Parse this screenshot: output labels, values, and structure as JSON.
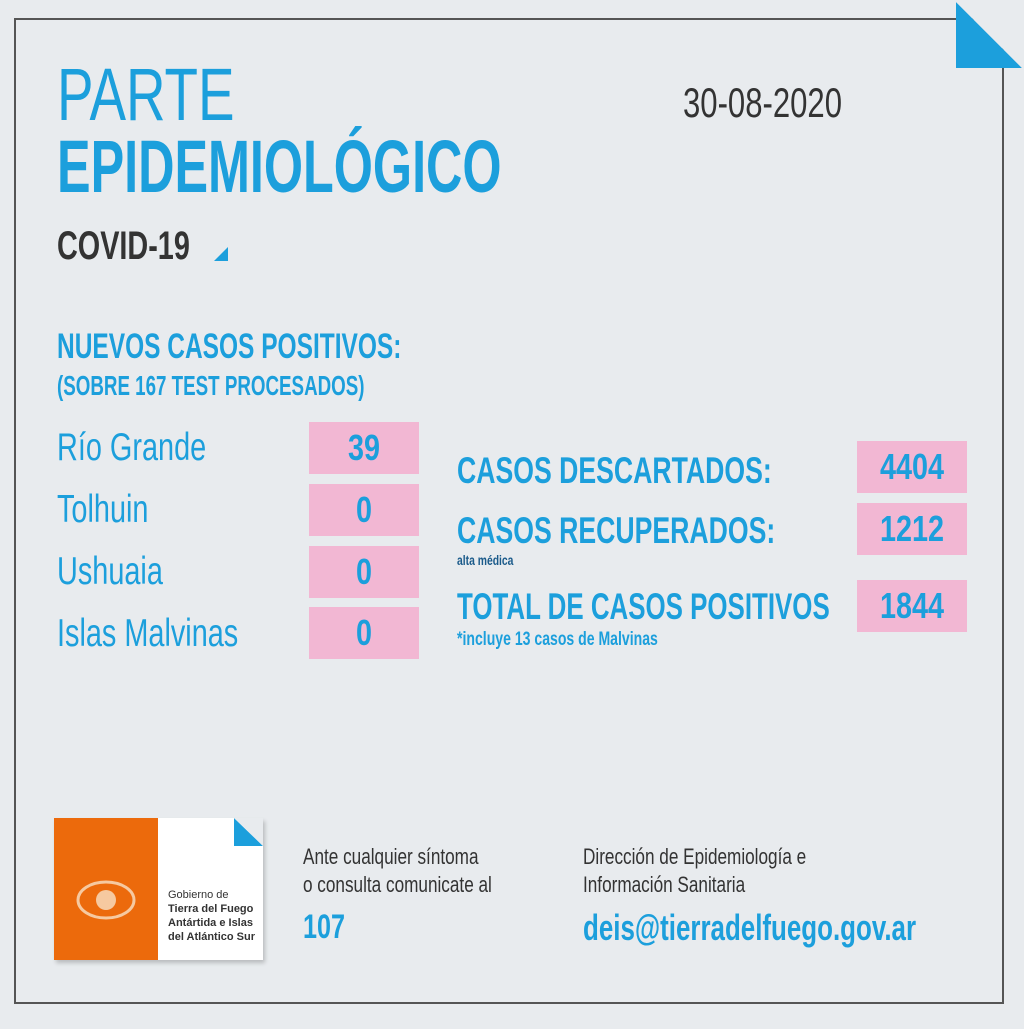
{
  "header": {
    "title_line1": "PARTE",
    "title_line2": "EPIDEMIOLÓGICO",
    "subtitle": "COVID-19",
    "date": "30-08-2020"
  },
  "new_cases": {
    "heading": "NUEVOS CASOS POSITIVOS:",
    "subheading": "(SOBRE 167 TEST PROCESADOS)",
    "rows": [
      {
        "label": "Río Grande",
        "value": 39
      },
      {
        "label": "Tolhuin",
        "value": 0
      },
      {
        "label": "Ushuaia",
        "value": 0
      },
      {
        "label": "Islas Malvinas",
        "value": 0
      }
    ]
  },
  "totals": [
    {
      "label": "CASOS DESCARTADOS:",
      "value": 4404
    },
    {
      "label": "CASOS RECUPERADOS:",
      "note": "alta médica",
      "value": 1212
    },
    {
      "label": "TOTAL DE CASOS POSITIVOS",
      "note": "*incluye 13 casos de Malvinas",
      "value": 1844
    }
  ],
  "footer": {
    "logo_lines": [
      "Gobierno de",
      "Tierra del Fuego",
      "Antártida e Islas",
      "del Atlántico Sur"
    ],
    "contact_lines": [
      "Ante cualquier síntoma",
      "o consulta comunicate al"
    ],
    "phone": "107",
    "office_lines": [
      "Dirección de Epidemiología e",
      "Información Sanitaria"
    ],
    "email": "deis@tierradelfuego.gov.ar"
  }
}
